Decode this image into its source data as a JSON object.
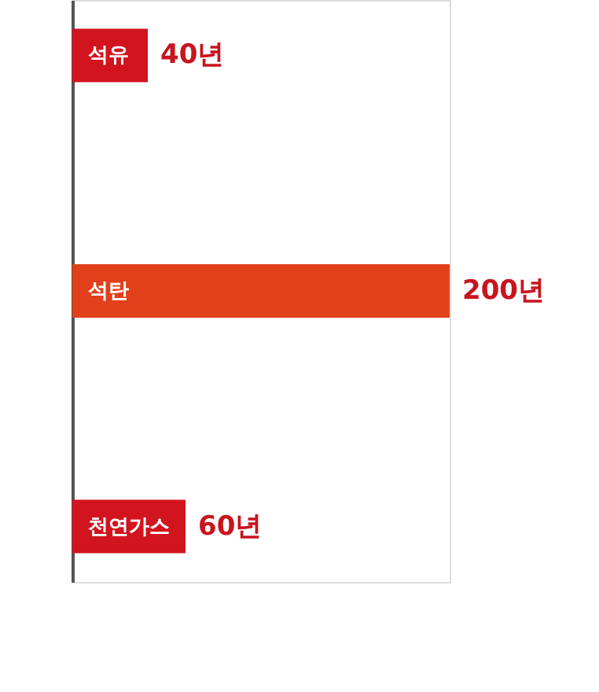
{
  "chart_data": {
    "type": "bar",
    "orientation": "horizontal",
    "categories": [
      "석유",
      "석탄",
      "천연가스"
    ],
    "values": [
      40,
      200,
      60
    ],
    "colors": [
      "#d2141e",
      "#e2401a",
      "#d2141e"
    ],
    "value_labels": [
      "40년",
      "200년",
      "60년"
    ]
  }
}
